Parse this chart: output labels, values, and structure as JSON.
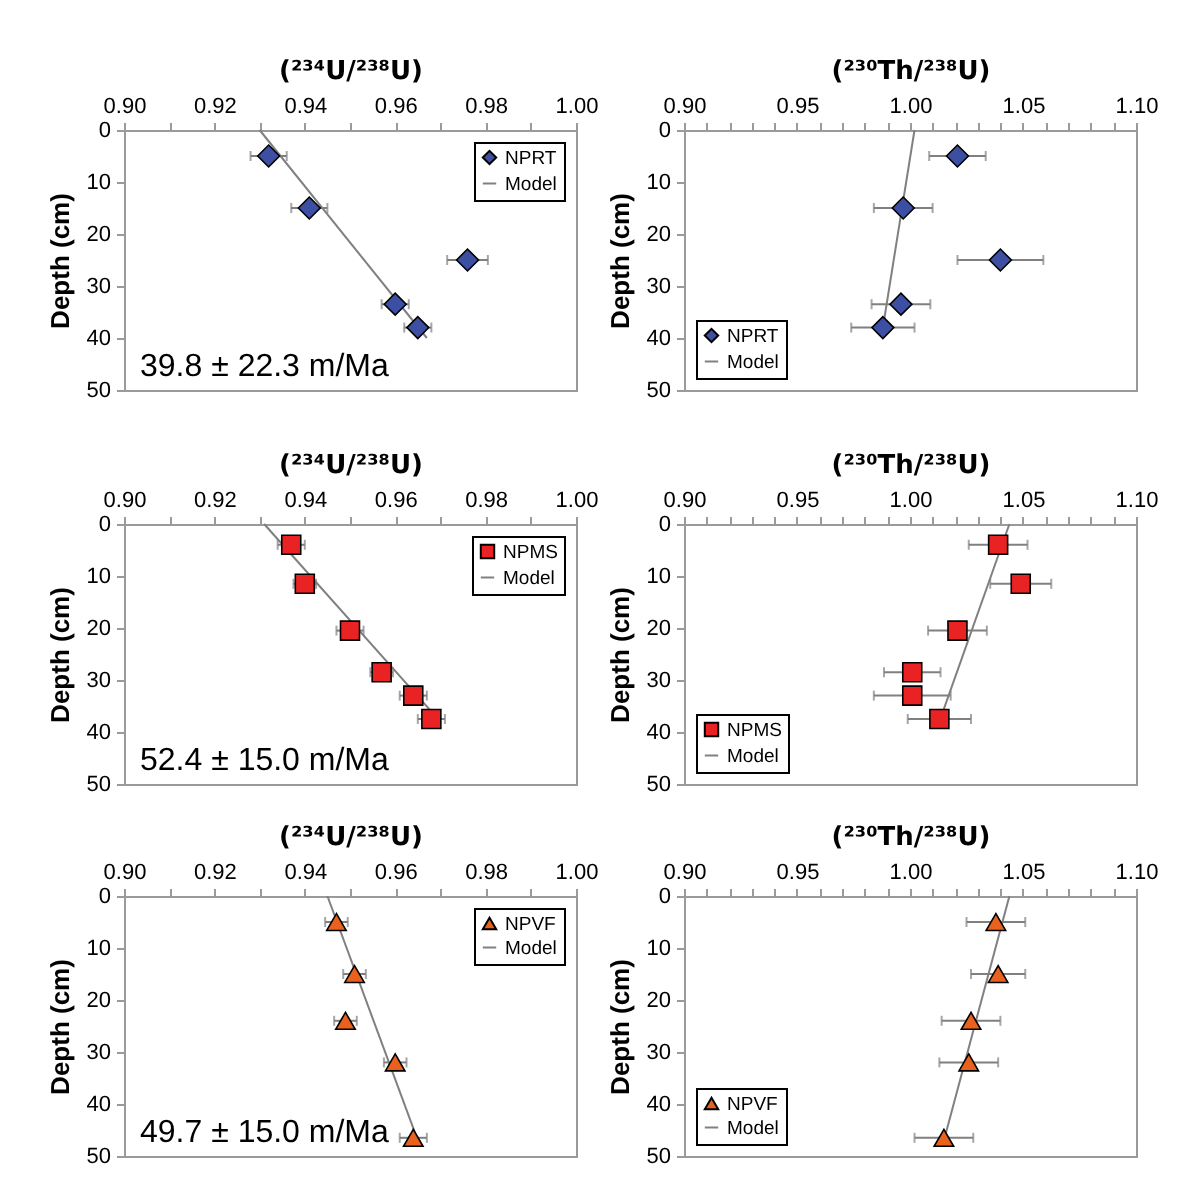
{
  "chart_data": [
    {
      "type": "scatter",
      "xlabel": "(²³⁴U/²³⁸U)",
      "ylabel": "Depth (cm)",
      "xlim": [
        0.9,
        1.0
      ],
      "xticks": [
        {
          "value": 0.9,
          "label": "0.90"
        },
        {
          "value": 0.91,
          "label": null
        },
        {
          "value": 0.92,
          "label": "0.92"
        },
        {
          "value": 0.93,
          "label": null
        },
        {
          "value": 0.94,
          "label": "0.94"
        },
        {
          "value": 0.95,
          "label": null
        },
        {
          "value": 0.96,
          "label": "0.96"
        },
        {
          "value": 0.97,
          "label": null
        },
        {
          "value": 0.98,
          "label": "0.98"
        },
        {
          "value": 0.99,
          "label": null
        },
        {
          "value": 1.0,
          "label": "1.00"
        }
      ],
      "ylim": [
        50,
        0
      ],
      "yticks": [
        0,
        10,
        20,
        30,
        40,
        50
      ],
      "legend": "top right",
      "annotations": [
        "39.8 ± 22.3 m/Ma"
      ],
      "series": [
        {
          "name": "NPRT",
          "color": "#3d4fa3",
          "marker": "diamond",
          "x": [
            0.932,
            0.941,
            0.976,
            0.96,
            0.965
          ],
          "values": [
            5,
            15,
            25,
            33.5,
            38
          ],
          "xerrors": [
            0.004,
            0.004,
            0.0045,
            0.003,
            0.003
          ]
        },
        {
          "name": "Model",
          "type": "line",
          "color": "#808080",
          "line_style": "solid",
          "x": [
            0.93,
            0.967
          ],
          "values": [
            0,
            40
          ]
        }
      ]
    },
    {
      "type": "scatter",
      "xlabel": "(²³⁰Th/²³⁸U)",
      "ylabel": "Depth (cm)",
      "xlim": [
        0.9,
        1.1
      ],
      "xticks": [
        {
          "value": 0.9,
          "label": "0.90"
        },
        {
          "value": 0.91,
          "label": null
        },
        {
          "value": 0.92,
          "label": null
        },
        {
          "value": 0.93,
          "label": null
        },
        {
          "value": 0.94,
          "label": null
        },
        {
          "value": 0.95,
          "label": "0.95"
        },
        {
          "value": 0.96,
          "label": null
        },
        {
          "value": 0.97,
          "label": null
        },
        {
          "value": 0.98,
          "label": null
        },
        {
          "value": 0.99,
          "label": null
        },
        {
          "value": 1.0,
          "label": "1.00"
        },
        {
          "value": 1.01,
          "label": null
        },
        {
          "value": 1.02,
          "label": null
        },
        {
          "value": 1.03,
          "label": null
        },
        {
          "value": 1.04,
          "label": null
        },
        {
          "value": 1.05,
          "label": "1.05"
        },
        {
          "value": 1.06,
          "label": null
        },
        {
          "value": 1.07,
          "label": null
        },
        {
          "value": 1.08,
          "label": null
        },
        {
          "value": 1.09,
          "label": null
        },
        {
          "value": 1.1,
          "label": "1.10"
        }
      ],
      "ylim": [
        50,
        0
      ],
      "yticks": [
        0,
        10,
        20,
        30,
        40,
        50
      ],
      "legend": "bottom left",
      "series": [
        {
          "name": "NPRT",
          "color": "#3d4fa3",
          "marker": "diamond",
          "x": [
            1.021,
            0.997,
            1.04,
            0.996,
            0.988
          ],
          "values": [
            5,
            15,
            25,
            33.5,
            38
          ],
          "xerrors": [
            0.0125,
            0.013,
            0.019,
            0.013,
            0.014
          ]
        },
        {
          "name": "Model",
          "type": "line",
          "color": "#808080",
          "line_style": "solid",
          "x": [
            1.002,
            0.988
          ],
          "values": [
            0,
            38
          ]
        }
      ]
    },
    {
      "type": "scatter",
      "xlabel": "(²³⁴U/²³⁸U)",
      "ylabel": "Depth (cm)",
      "xlim": [
        0.9,
        1.0
      ],
      "xticks": [
        {
          "value": 0.9,
          "label": "0.90"
        },
        {
          "value": 0.91,
          "label": null
        },
        {
          "value": 0.92,
          "label": "0.92"
        },
        {
          "value": 0.93,
          "label": null
        },
        {
          "value": 0.94,
          "label": "0.94"
        },
        {
          "value": 0.95,
          "label": null
        },
        {
          "value": 0.96,
          "label": "0.96"
        },
        {
          "value": 0.97,
          "label": null
        },
        {
          "value": 0.98,
          "label": "0.98"
        },
        {
          "value": 0.99,
          "label": null
        },
        {
          "value": 1.0,
          "label": "1.00"
        }
      ],
      "ylim": [
        50,
        0
      ],
      "yticks": [
        0,
        10,
        20,
        30,
        40,
        50
      ],
      "legend": "top right",
      "annotations": [
        "52.4 ± 15.0 m/Ma"
      ],
      "series": [
        {
          "name": "NPMS",
          "color": "#e92324",
          "marker": "square",
          "x": [
            0.937,
            0.94,
            0.95,
            0.957,
            0.964,
            0.968
          ],
          "values": [
            4,
            11.5,
            20.5,
            28.5,
            33,
            37.5
          ],
          "xerrors": [
            0.003,
            0.0025,
            0.003,
            0.0025,
            0.003,
            0.003
          ]
        },
        {
          "name": "Model",
          "type": "line",
          "color": "#808080",
          "line_style": "solid",
          "x": [
            0.931,
            0.97
          ],
          "values": [
            0,
            38
          ]
        }
      ]
    },
    {
      "type": "scatter",
      "xlabel": "(²³⁰Th/²³⁸U)",
      "ylabel": "Depth (cm)",
      "xlim": [
        0.9,
        1.1
      ],
      "xticks": [
        {
          "value": 0.9,
          "label": "0.90"
        },
        {
          "value": 0.91,
          "label": null
        },
        {
          "value": 0.92,
          "label": null
        },
        {
          "value": 0.93,
          "label": null
        },
        {
          "value": 0.94,
          "label": null
        },
        {
          "value": 0.95,
          "label": "0.95"
        },
        {
          "value": 0.96,
          "label": null
        },
        {
          "value": 0.97,
          "label": null
        },
        {
          "value": 0.98,
          "label": null
        },
        {
          "value": 0.99,
          "label": null
        },
        {
          "value": 1.0,
          "label": "1.00"
        },
        {
          "value": 1.01,
          "label": null
        },
        {
          "value": 1.02,
          "label": null
        },
        {
          "value": 1.03,
          "label": null
        },
        {
          "value": 1.04,
          "label": null
        },
        {
          "value": 1.05,
          "label": "1.05"
        },
        {
          "value": 1.06,
          "label": null
        },
        {
          "value": 1.07,
          "label": null
        },
        {
          "value": 1.08,
          "label": null
        },
        {
          "value": 1.09,
          "label": null
        },
        {
          "value": 1.1,
          "label": "1.10"
        }
      ],
      "ylim": [
        50,
        0
      ],
      "yticks": [
        0,
        10,
        20,
        30,
        40,
        50
      ],
      "legend": "bottom left",
      "series": [
        {
          "name": "NPMS",
          "color": "#e92324",
          "marker": "square",
          "x": [
            1.039,
            1.049,
            1.021,
            1.001,
            1.001,
            1.013
          ],
          "values": [
            4,
            11.5,
            20.5,
            28.5,
            33,
            37.5
          ],
          "xerrors": [
            0.013,
            0.0135,
            0.013,
            0.0125,
            0.017,
            0.014
          ]
        },
        {
          "name": "Model",
          "type": "line",
          "color": "#808080",
          "line_style": "solid",
          "x": [
            1.044,
            1.013
          ],
          "values": [
            0,
            38
          ]
        }
      ]
    },
    {
      "type": "scatter",
      "xlabel": "(²³⁴U/²³⁸U)",
      "ylabel": "Depth (cm)",
      "xlim": [
        0.9,
        1.0
      ],
      "xticks": [
        {
          "value": 0.9,
          "label": "0.90"
        },
        {
          "value": 0.91,
          "label": null
        },
        {
          "value": 0.92,
          "label": "0.92"
        },
        {
          "value": 0.93,
          "label": null
        },
        {
          "value": 0.94,
          "label": "0.94"
        },
        {
          "value": 0.95,
          "label": null
        },
        {
          "value": 0.96,
          "label": "0.96"
        },
        {
          "value": 0.97,
          "label": null
        },
        {
          "value": 0.98,
          "label": "0.98"
        },
        {
          "value": 0.99,
          "label": null
        },
        {
          "value": 1.0,
          "label": "1.00"
        }
      ],
      "ylim": [
        50,
        0
      ],
      "yticks": [
        0,
        10,
        20,
        30,
        40,
        50
      ],
      "legend": "top right",
      "annotations": [
        "49.7 ± 15.0 m/Ma"
      ],
      "series": [
        {
          "name": "NPVF",
          "color": "#e8621e",
          "marker": "triangle",
          "x": [
            0.947,
            0.951,
            0.949,
            0.96,
            0.964
          ],
          "values": [
            5,
            15,
            24,
            32,
            46.5
          ],
          "xerrors": [
            0.0025,
            0.0025,
            0.0025,
            0.0025,
            0.003
          ]
        },
        {
          "name": "Model",
          "type": "line",
          "color": "#808080",
          "line_style": "solid",
          "x": [
            0.945,
            0.965
          ],
          "values": [
            0,
            47
          ]
        }
      ]
    },
    {
      "type": "scatter",
      "xlabel": "(²³⁰Th/²³⁸U)",
      "ylabel": "Depth (cm)",
      "xlim": [
        0.9,
        1.1
      ],
      "xticks": [
        {
          "value": 0.9,
          "label": "0.90"
        },
        {
          "value": 0.91,
          "label": null
        },
        {
          "value": 0.92,
          "label": null
        },
        {
          "value": 0.93,
          "label": null
        },
        {
          "value": 0.94,
          "label": null
        },
        {
          "value": 0.95,
          "label": "0.95"
        },
        {
          "value": 0.96,
          "label": null
        },
        {
          "value": 0.97,
          "label": null
        },
        {
          "value": 0.98,
          "label": null
        },
        {
          "value": 0.99,
          "label": null
        },
        {
          "value": 1.0,
          "label": "1.00"
        },
        {
          "value": 1.01,
          "label": null
        },
        {
          "value": 1.02,
          "label": null
        },
        {
          "value": 1.03,
          "label": null
        },
        {
          "value": 1.04,
          "label": null
        },
        {
          "value": 1.05,
          "label": "1.05"
        },
        {
          "value": 1.06,
          "label": null
        },
        {
          "value": 1.07,
          "label": null
        },
        {
          "value": 1.08,
          "label": null
        },
        {
          "value": 1.09,
          "label": null
        },
        {
          "value": 1.1,
          "label": "1.10"
        }
      ],
      "ylim": [
        50,
        0
      ],
      "yticks": [
        0,
        10,
        20,
        30,
        40,
        50
      ],
      "legend": "bottom left",
      "series": [
        {
          "name": "NPVF",
          "color": "#e8621e",
          "marker": "triangle",
          "x": [
            1.038,
            1.039,
            1.027,
            1.026,
            1.015
          ],
          "values": [
            5,
            15,
            24,
            32,
            46.5
          ],
          "xerrors": [
            0.013,
            0.012,
            0.013,
            0.013,
            0.013
          ]
        },
        {
          "name": "Model",
          "type": "line",
          "color": "#808080",
          "line_style": "solid",
          "x": [
            1.044,
            1.015
          ],
          "values": [
            0,
            47
          ]
        }
      ]
    }
  ]
}
